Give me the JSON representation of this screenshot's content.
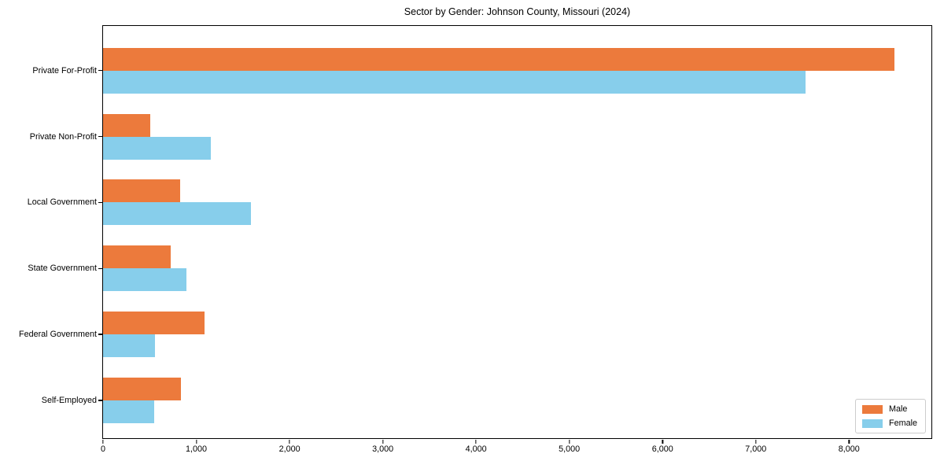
{
  "chart_data": {
    "type": "bar",
    "orientation": "horizontal",
    "title": "Sector by Gender: Johnson County, Missouri (2024)",
    "categories": [
      "Private For-Profit",
      "Private Non-Profit",
      "Local Government",
      "State Government",
      "Federal Government",
      "Self-Employed"
    ],
    "series": [
      {
        "name": "Male",
        "color": "#EC7A3C",
        "values": [
          8490,
          510,
          830,
          725,
          1090,
          835
        ]
      },
      {
        "name": "Female",
        "color": "#87CEEB",
        "values": [
          7535,
          1155,
          1590,
          890,
          560,
          545
        ]
      }
    ],
    "xlabel": "",
    "ylabel": "",
    "xlim": [
      0,
      8900
    ],
    "xticks": [
      0,
      1000,
      2000,
      3000,
      4000,
      5000,
      6000,
      7000,
      8000
    ],
    "xtick_labels": [
      "0",
      "1,000",
      "2,000",
      "3,000",
      "4,000",
      "5,000",
      "6,000",
      "7,000",
      "8,000"
    ],
    "grid": false,
    "legend": {
      "position": "lower right",
      "entries": [
        "Male",
        "Female"
      ]
    },
    "colors": {
      "spine": "#000000",
      "background": "#ffffff",
      "legend_border": "#cccccc"
    }
  }
}
